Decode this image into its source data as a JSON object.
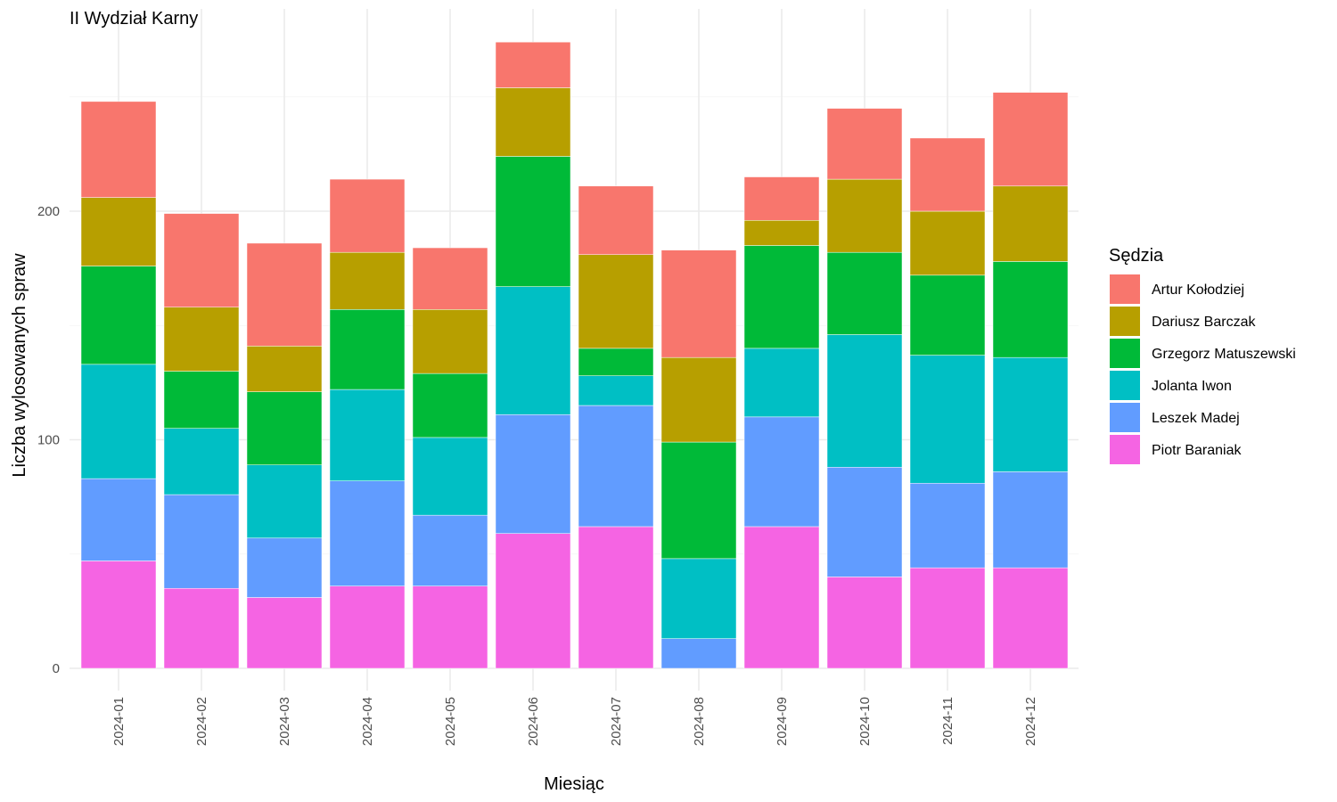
{
  "chart_data": {
    "type": "bar",
    "stacked": true,
    "title": "II Wydział Karny",
    "xlabel": "Miesiąc",
    "ylabel": "Liczba wylosowanych spraw",
    "ylim": [
      0,
      280
    ],
    "yticks": [
      0,
      100,
      200
    ],
    "grid": true,
    "legend_title": "Sędzia",
    "legend_position": "right",
    "categories": [
      "2024-01",
      "2024-02",
      "2024-03",
      "2024-04",
      "2024-05",
      "2024-06",
      "2024-07",
      "2024-08",
      "2024-09",
      "2024-10",
      "2024-11",
      "2024-12"
    ],
    "series": [
      {
        "name": "Artur Kołodziej",
        "color": "#F8766D",
        "values": [
          42,
          41,
          45,
          32,
          27,
          20,
          30,
          47,
          19,
          31,
          32,
          41
        ]
      },
      {
        "name": "Dariusz Barczak",
        "color": "#B79F00",
        "values": [
          30,
          28,
          20,
          25,
          28,
          30,
          41,
          37,
          11,
          32,
          28,
          33
        ]
      },
      {
        "name": "Grzegorz Matuszewski",
        "color": "#00BA38",
        "values": [
          43,
          25,
          32,
          35,
          28,
          57,
          12,
          51,
          45,
          36,
          35,
          42
        ]
      },
      {
        "name": "Jolanta Iwon",
        "color": "#00BFC4",
        "values": [
          50,
          29,
          32,
          40,
          34,
          56,
          13,
          35,
          30,
          58,
          56,
          50
        ]
      },
      {
        "name": "Leszek Madej",
        "color": "#619CFF",
        "values": [
          36,
          41,
          26,
          46,
          31,
          52,
          53,
          13,
          48,
          48,
          37,
          42
        ]
      },
      {
        "name": "Piotr Baraniak",
        "color": "#F564E3",
        "values": [
          47,
          35,
          31,
          36,
          36,
          59,
          62,
          0,
          62,
          40,
          44,
          44
        ]
      }
    ]
  }
}
